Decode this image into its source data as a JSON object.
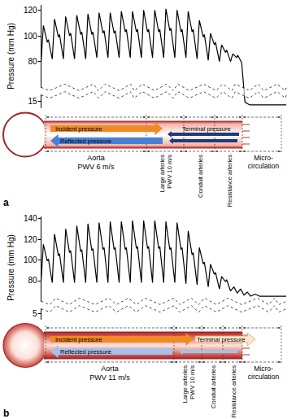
{
  "chart_data": [
    {
      "type": "line",
      "panel": "a",
      "y_label": "Pressure (mm Hg)",
      "color": "#000000",
      "grid": false,
      "tick_labels": "y",
      "xlim": [
        0,
        22
      ],
      "ylim": [
        10,
        124
      ],
      "yticks": [
        15,
        80,
        100,
        120
      ],
      "x": [
        0,
        0.2,
        0.55,
        0.65,
        1,
        1.2,
        1.55,
        1.65,
        2,
        2.2,
        2.55,
        2.65,
        3,
        3.2,
        3.55,
        3.65,
        4,
        4.2,
        4.55,
        4.65,
        5,
        5.2,
        5.55,
        5.65,
        6,
        6.2,
        6.55,
        6.65,
        7,
        7.2,
        7.55,
        7.65,
        8,
        8.2,
        8.55,
        8.65,
        9,
        9.2,
        9.55,
        9.65,
        10,
        10.2,
        10.55,
        10.65,
        11,
        11.2,
        11.55,
        11.65,
        12,
        12.2,
        12.55,
        12.65,
        13,
        13.2,
        13.55,
        13.65,
        14,
        14.2,
        14.55,
        14.65,
        15,
        15.2,
        15.55,
        15.65,
        16,
        16.2,
        16.55,
        16.65,
        17,
        17.2,
        17.55,
        17.65,
        18,
        18.3,
        18.7,
        22
      ],
      "values": [
        80,
        108,
        95,
        97,
        82,
        113,
        99,
        101,
        82,
        115,
        100,
        102,
        82,
        116,
        101,
        103,
        82,
        117,
        101,
        103,
        83,
        118,
        102,
        104,
        83,
        118,
        102,
        104,
        83,
        119,
        103,
        105,
        83,
        119,
        103,
        105,
        83,
        120,
        103,
        105,
        83,
        120,
        103,
        105,
        83,
        121,
        104,
        106,
        83,
        120,
        103,
        105,
        83,
        119,
        103,
        105,
        82,
        112,
        99,
        101,
        81,
        102,
        93,
        95,
        80,
        93,
        87,
        89,
        80,
        86,
        83,
        85,
        79,
        14,
        12,
        12
      ]
    },
    {
      "type": "line",
      "panel": "b",
      "y_label": "Pressure (mm Hg)",
      "color": "#000000",
      "grid": false,
      "tick_labels": "y",
      "xlim": [
        0,
        22
      ],
      "ylim": [
        0,
        142
      ],
      "yticks": [
        5,
        80,
        100,
        120,
        140
      ],
      "x": [
        0,
        0.2,
        0.55,
        0.65,
        1,
        1.2,
        1.55,
        1.65,
        2,
        2.2,
        2.55,
        2.65,
        3,
        3.2,
        3.55,
        3.65,
        4,
        4.2,
        4.55,
        4.65,
        5,
        5.2,
        5.55,
        5.65,
        6,
        6.2,
        6.55,
        6.65,
        7,
        7.2,
        7.55,
        7.65,
        8,
        8.2,
        8.55,
        8.65,
        9,
        9.2,
        9.55,
        9.65,
        10,
        10.2,
        10.55,
        10.65,
        11,
        11.2,
        11.55,
        11.65,
        12,
        12.2,
        12.55,
        12.65,
        13,
        13.2,
        13.55,
        13.65,
        14,
        14.2,
        14.55,
        14.65,
        15,
        15.2,
        15.55,
        15.65,
        16,
        16.2,
        16.55,
        16.65,
        17,
        17.3,
        17.6,
        17.9,
        18.2,
        18.5,
        18.8,
        19.2,
        19.6,
        22
      ],
      "values": [
        80,
        115,
        99,
        101,
        78,
        125,
        104,
        106,
        78,
        130,
        107,
        109,
        78,
        133,
        108,
        110,
        78,
        135,
        109,
        111,
        78,
        136,
        110,
        112,
        78,
        137,
        110,
        112,
        78,
        137,
        110,
        112,
        78,
        138,
        111,
        113,
        78,
        138,
        111,
        113,
        78,
        138,
        111,
        113,
        78,
        137,
        110,
        112,
        78,
        136,
        110,
        112,
        77,
        128,
        105,
        107,
        76,
        112,
        96,
        98,
        74,
        96,
        86,
        88,
        72,
        84,
        79,
        81,
        70,
        74,
        68,
        72,
        66,
        69,
        65,
        67,
        65,
        65
      ]
    }
  ],
  "diagrams": [
    {
      "panel": "a",
      "incident": "Incident pressure",
      "terminal": "Terminal pressure",
      "reflected": "Reflected pressure",
      "segments": [
        {
          "label": "Aorta",
          "pwv": "PWV 6 m/s"
        },
        {
          "label": "Large arteries",
          "pwv": "PWV 10 m/s"
        },
        {
          "label": "Conduit arteries"
        },
        {
          "label": "Resistance arteries"
        },
        {
          "label": "Micro-circulation"
        }
      ]
    },
    {
      "panel": "b",
      "incident": "Incident pressure",
      "terminal": "Terminal pressure",
      "reflected": "Reflected pressure",
      "segments": [
        {
          "label": "Aorta",
          "pwv": "PWV 11 m/s"
        },
        {
          "label": "Large arteries",
          "pwv": "PWV 10 m/s"
        },
        {
          "label": "Conduit arteries"
        },
        {
          "label": "Resistance arteries"
        },
        {
          "label": "Micro-circulation"
        }
      ]
    }
  ]
}
